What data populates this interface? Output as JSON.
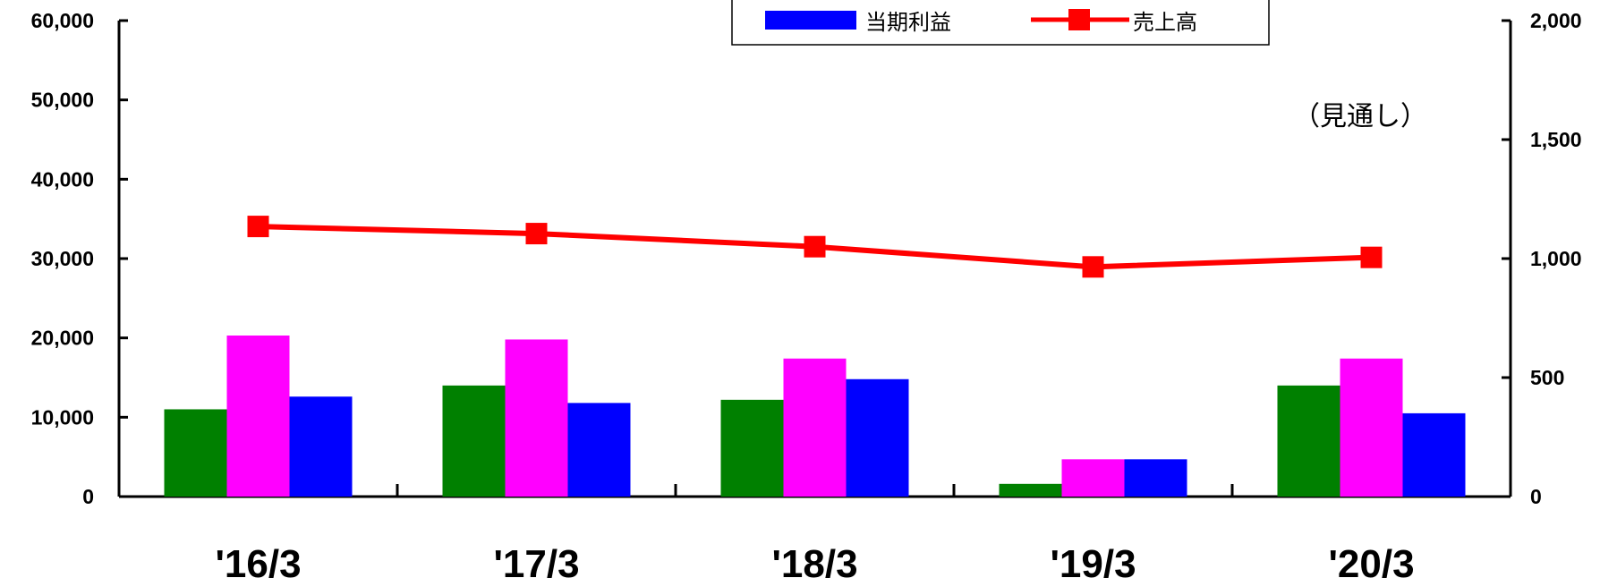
{
  "chart_data": {
    "type": "bar",
    "categories": [
      "'16/3",
      "'17/3",
      "'18/3",
      "'19/3",
      "'20/3"
    ],
    "series": [
      {
        "values": [
          11000,
          14000,
          12200,
          1600,
          14000
        ],
        "color": "#008000",
        "axis": "left"
      },
      {
        "values": [
          20300,
          19800,
          17400,
          4700,
          17400
        ],
        "color": "#ff00ff",
        "axis": "left"
      },
      {
        "name": "当期利益",
        "values": [
          12600,
          11800,
          14800,
          4700,
          10500
        ],
        "color": "#0000ff",
        "axis": "left"
      },
      {
        "name": "売上高",
        "type": "line",
        "values": [
          1135,
          1105,
          1050,
          965,
          1005
        ],
        "color": "#ff0000",
        "axis": "right"
      }
    ],
    "yleft": {
      "min": 0,
      "max": 60000,
      "ticks": [
        "0",
        "10,000",
        "20,000",
        "30,000",
        "40,000",
        "50,000",
        "60,000"
      ]
    },
    "yright": {
      "min": 0,
      "max": 2000,
      "ticks": [
        "0",
        "500",
        "1,000",
        "1,500",
        "2,000"
      ]
    },
    "annotation": "（見通し）",
    "legend_position": "top-center"
  }
}
